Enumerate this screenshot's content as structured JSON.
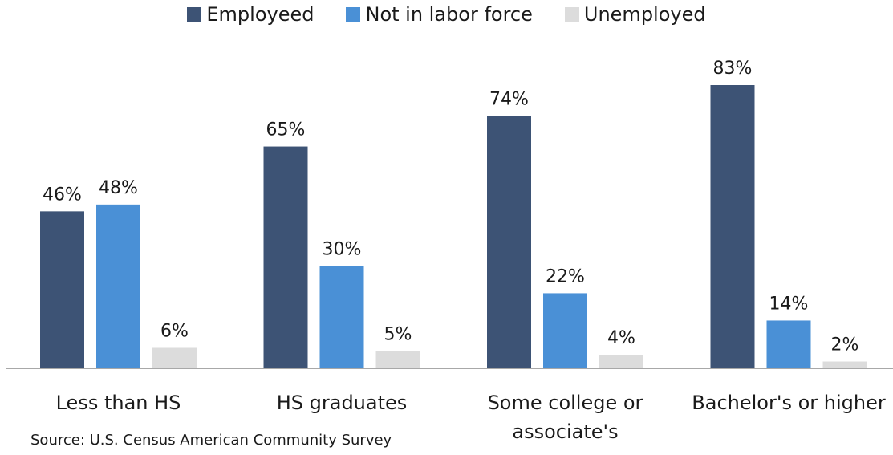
{
  "chart_data": {
    "type": "bar",
    "categories": [
      "Less than HS",
      "HS graduates",
      "Some college or associate's",
      "Bachelor's or higher"
    ],
    "category_lines": [
      [
        "Less than HS"
      ],
      [
        "HS graduates"
      ],
      [
        "Some college or",
        "associate's"
      ],
      [
        "Bachelor's or higher"
      ]
    ],
    "series": [
      {
        "name": "Employeed",
        "color": "#3d5375",
        "values": [
          46,
          65,
          74,
          83
        ]
      },
      {
        "name": "Not in labor force",
        "color": "#4a90d6",
        "values": [
          48,
          30,
          22,
          14
        ]
      },
      {
        "name": "Unemployed",
        "color": "#dcdcdc",
        "values": [
          6,
          5,
          4,
          2
        ]
      }
    ],
    "value_suffix": "%",
    "ylim": [
      0,
      100
    ],
    "grid": false,
    "legend_position": "top-center",
    "source": "Source: U.S. Census American Community Survey"
  }
}
